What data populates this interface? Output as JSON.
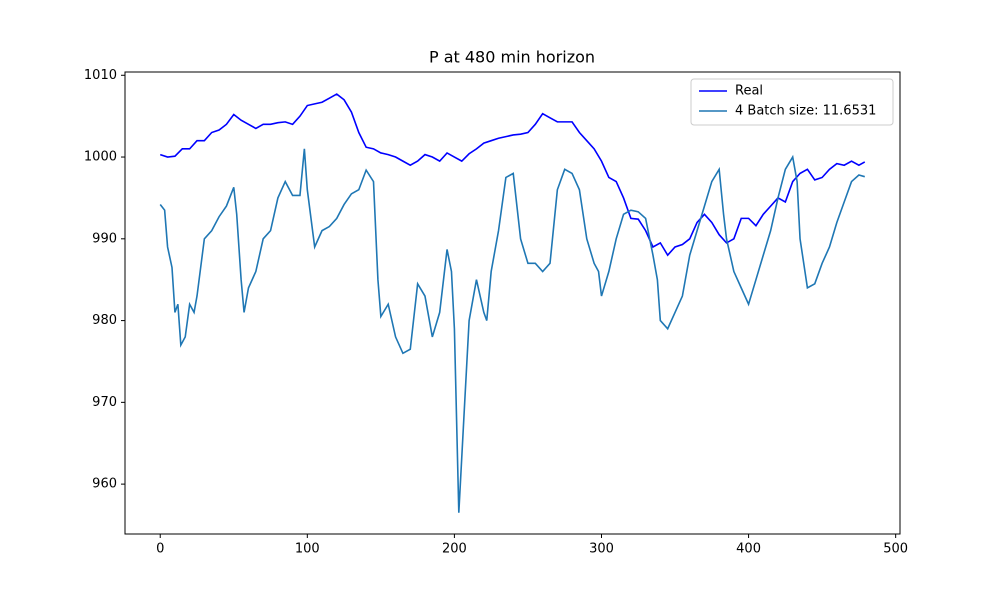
{
  "chart_data": {
    "type": "line",
    "title": "P at 480 min horizon",
    "xlim": [
      -23.95,
      502.95
    ],
    "xticks": [
      0,
      100,
      200,
      300,
      400,
      500
    ],
    "ylim": [
      953.9,
      1010.4
    ],
    "yticks": [
      960,
      970,
      980,
      990,
      1000,
      1010
    ],
    "legend": "upper right",
    "series": [
      {
        "name": "Real",
        "color": "#0000ff",
        "x": [
          0,
          5,
          10,
          15,
          20,
          25,
          30,
          35,
          40,
          45,
          50,
          55,
          60,
          65,
          70,
          75,
          80,
          85,
          90,
          95,
          100,
          105,
          110,
          115,
          120,
          125,
          130,
          135,
          140,
          145,
          150,
          155,
          160,
          165,
          170,
          175,
          180,
          185,
          190,
          195,
          200,
          205,
          210,
          215,
          220,
          225,
          230,
          235,
          240,
          245,
          250,
          255,
          260,
          265,
          270,
          275,
          280,
          285,
          290,
          295,
          300,
          305,
          310,
          315,
          320,
          325,
          330,
          335,
          340,
          345,
          350,
          355,
          360,
          365,
          370,
          375,
          380,
          385,
          390,
          395,
          400,
          405,
          410,
          415,
          420,
          425,
          430,
          435,
          440,
          445,
          450,
          455,
          460,
          465,
          470,
          475,
          479
        ],
        "values": [
          1000.3,
          1000,
          1000.1,
          1001,
          1001,
          1002,
          1002,
          1003,
          1003.3,
          1004,
          1005.2,
          1004.5,
          1004,
          1003.5,
          1004,
          1004,
          1004.2,
          1004.3,
          1004,
          1005,
          1006.3,
          1006.5,
          1006.7,
          1007.2,
          1007.7,
          1007,
          1005.5,
          1003,
          1001.2,
          1001,
          1000.5,
          1000.3,
          1000,
          999.5,
          999,
          999.5,
          1000.3,
          1000,
          999.5,
          1000.5,
          1000,
          999.5,
          1000.4,
          1001,
          1001.7,
          1002,
          1002.3,
          1002.5,
          1002.7,
          1002.8,
          1003,
          1004,
          1005.3,
          1004.8,
          1004.3,
          1004.3,
          1004.3,
          1003,
          1002,
          1001,
          999.5,
          997.5,
          997,
          995,
          992.5,
          992.4,
          991,
          989,
          989.5,
          988,
          989,
          989.3,
          990,
          992,
          993,
          992,
          990.5,
          989.5,
          990,
          992.5,
          992.5,
          991.6,
          993,
          994,
          995,
          994.5,
          997,
          998,
          998.5,
          997.2,
          997.5,
          998.5,
          999.2,
          999,
          999.5,
          999,
          999.4
        ]
      },
      {
        "name": "4 Batch size: 11.6531",
        "color": "#1f77b4",
        "x": [
          0,
          3,
          5,
          8,
          10,
          12,
          14,
          17,
          20,
          23,
          25,
          30,
          35,
          40,
          45,
          50,
          52,
          55,
          57,
          60,
          65,
          70,
          75,
          80,
          85,
          90,
          95,
          98,
          100,
          105,
          110,
          115,
          120,
          125,
          130,
          135,
          140,
          145,
          148,
          150,
          155,
          160,
          165,
          170,
          175,
          180,
          185,
          190,
          195,
          198,
          200,
          203,
          207,
          210,
          215,
          220,
          222,
          225,
          230,
          235,
          240,
          245,
          250,
          255,
          260,
          265,
          270,
          275,
          280,
          285,
          290,
          295,
          298,
          300,
          305,
          310,
          315,
          320,
          325,
          330,
          335,
          338,
          340,
          345,
          350,
          355,
          360,
          365,
          370,
          375,
          380,
          383,
          385,
          390,
          395,
          400,
          405,
          410,
          415,
          420,
          425,
          430,
          433,
          435,
          440,
          445,
          450,
          455,
          460,
          465,
          470,
          475,
          479
        ],
        "values": [
          994.2,
          993.5,
          989,
          986.5,
          981,
          982,
          977,
          978,
          982,
          981,
          983,
          990,
          991,
          992.7,
          994,
          996.3,
          993,
          985,
          981,
          984,
          986,
          990,
          991,
          995,
          997,
          995.3,
          995.3,
          1001,
          996,
          989,
          991,
          991.5,
          992.5,
          994.2,
          995.5,
          996,
          998.4,
          997,
          985,
          980.5,
          982,
          978,
          976,
          976.5,
          984.5,
          983,
          978,
          981,
          988.7,
          986,
          979,
          956.5,
          970,
          980,
          985,
          981,
          980,
          986,
          991,
          997.5,
          998,
          990,
          987,
          987,
          986,
          987,
          996,
          998.5,
          998,
          996,
          990,
          987,
          986,
          983,
          986,
          990,
          993,
          993.5,
          993.3,
          992.5,
          988,
          985,
          980,
          979,
          981,
          983,
          988,
          991,
          994,
          997,
          998.5,
          993,
          990,
          986,
          984,
          982,
          985,
          988,
          991,
          995,
          998.5,
          1000,
          997,
          990,
          984,
          984.5,
          987,
          989,
          992,
          994.5,
          997,
          997.8,
          997.6
        ]
      }
    ]
  }
}
